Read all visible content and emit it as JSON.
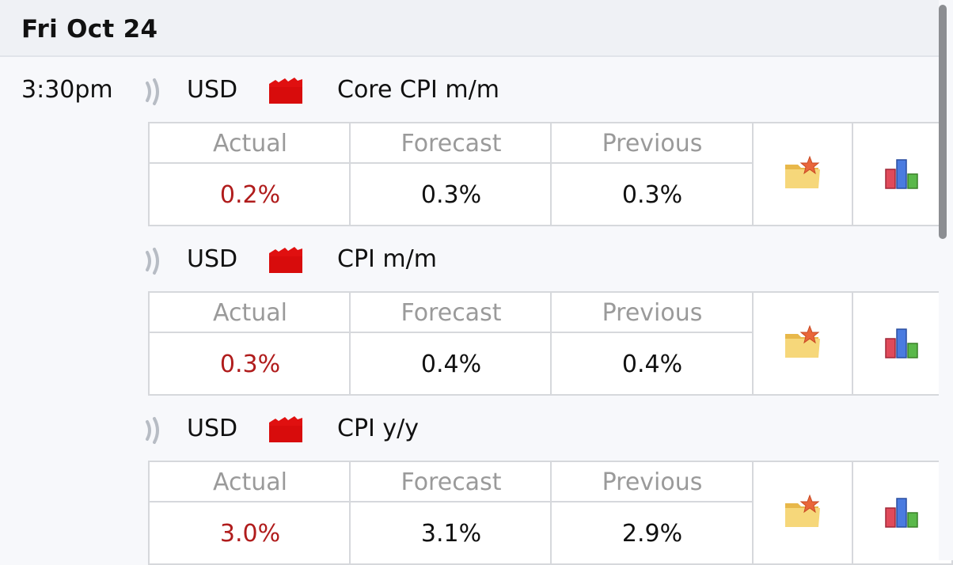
{
  "day": {
    "title": "Fri Oct 24"
  },
  "time": "3:30pm",
  "labels": {
    "actual": "Actual",
    "forecast": "Forecast",
    "previous": "Previous"
  },
  "events": [
    {
      "currency": "USD",
      "title": "Core CPI m/m",
      "impact": "high",
      "actual": "0.2%",
      "forecast": "0.3%",
      "previous": "0.3%"
    },
    {
      "currency": "USD",
      "title": "CPI m/m",
      "impact": "high",
      "actual": "0.3%",
      "forecast": "0.4%",
      "previous": "0.4%"
    },
    {
      "currency": "USD",
      "title": "CPI y/y",
      "impact": "high",
      "actual": "3.0%",
      "forecast": "3.1%",
      "previous": "2.9%"
    }
  ],
  "icons": {
    "sound": "sound-wave-icon",
    "impact": "impact-folder-icon",
    "detail": "detail-folder-icon",
    "chart": "bar-chart-icon"
  },
  "colors": {
    "actual_worse": "#b01c1c",
    "impact_high": "#e01010",
    "label_gray": "#9a9a9a",
    "header_bg": "#eff1f5"
  }
}
